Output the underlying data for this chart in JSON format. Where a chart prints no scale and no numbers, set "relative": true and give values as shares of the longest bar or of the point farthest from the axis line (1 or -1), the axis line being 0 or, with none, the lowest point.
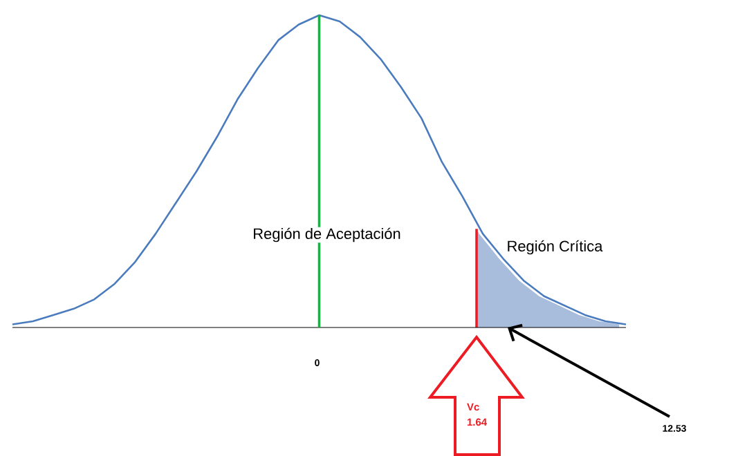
{
  "chart_data": {
    "type": "line",
    "relative": true,
    "categories": [
      null,
      null,
      null,
      null,
      null,
      null,
      null,
      null,
      null,
      null,
      null,
      null,
      null,
      null,
      null,
      null,
      null,
      null,
      null,
      null,
      null,
      null,
      null,
      null,
      null,
      null,
      null,
      null,
      null,
      null,
      null
    ],
    "series": [
      {
        "color": "#4a7bbd",
        "values": [
          0.01,
          0.02,
          0.04,
          0.06,
          0.09,
          0.14,
          0.21,
          0.3,
          0.4,
          0.5,
          0.61,
          0.73,
          0.83,
          0.92,
          0.97,
          1.0,
          0.98,
          0.93,
          0.86,
          0.77,
          0.67,
          0.53,
          0.42,
          0.3,
          0.22,
          0.15,
          0.1,
          0.07,
          0.04,
          0.02,
          0.01
        ]
      }
    ],
    "annotations": [
      "0",
      "Región de Aceptación",
      "Región Crítica",
      "Vc 1.64",
      "12.53"
    ],
    "marker": "none",
    "line_style": "solid"
  }
}
